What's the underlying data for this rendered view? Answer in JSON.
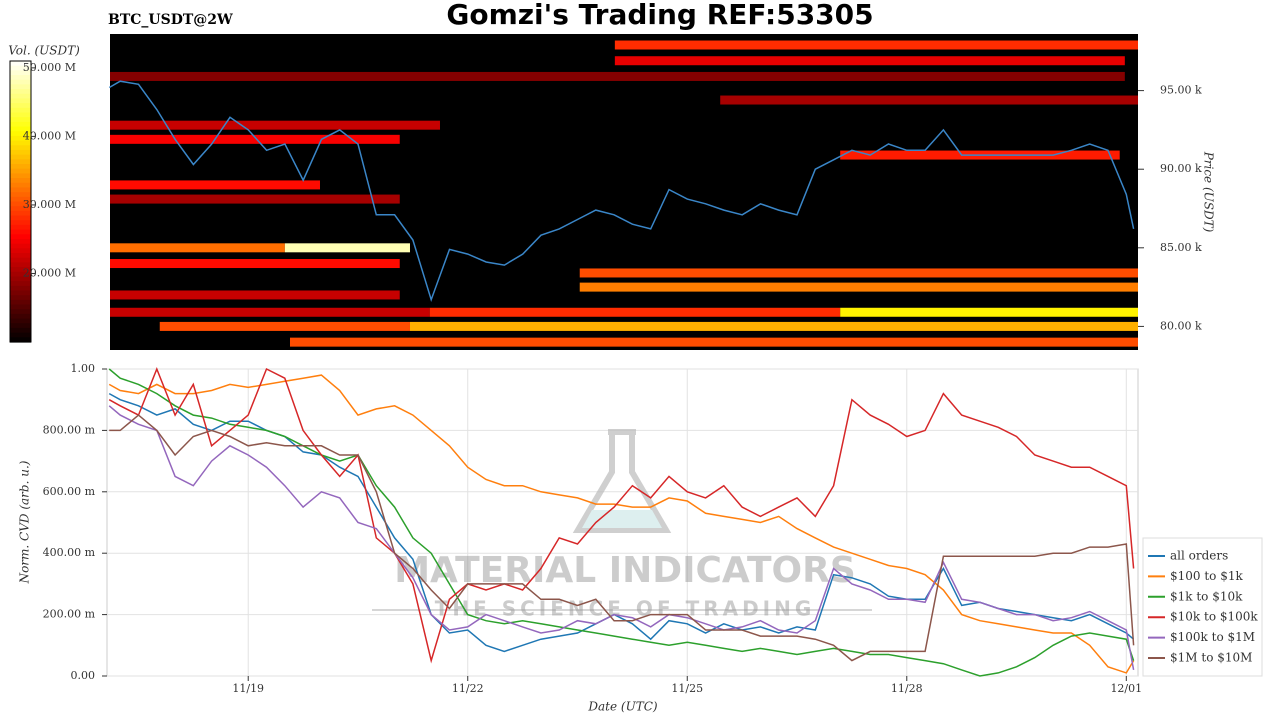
{
  "chart_data": [
    {
      "type": "heatmap",
      "title": "Gomzi's Trading REF:53305",
      "subtitle": "BTC_USDT@2W",
      "ylabel": "Price (USDT)",
      "xlim": [
        17.11,
        31.16
      ],
      "ylim": [
        78.5,
        98.6
      ],
      "yticks": [
        {
          "value": 80,
          "label": "80.00 k"
        },
        {
          "value": 85,
          "label": "85.00 k"
        },
        {
          "value": 90,
          "label": "90.00 k"
        },
        {
          "value": 95,
          "label": "95.00 k"
        }
      ],
      "colorbar": {
        "label": "Vol. (USDT)",
        "colormap": "hot",
        "clim": [
          10,
          51
        ],
        "ticks": [
          {
            "value": 20,
            "label": "20.000 M"
          },
          {
            "value": 30,
            "label": "30.000 M"
          },
          {
            "value": 40,
            "label": "40.000 M"
          },
          {
            "value": 50,
            "label": "50.000 M"
          }
        ]
      },
      "cells": [
        {
          "x0": 24.01,
          "x1": 31.16,
          "price": 97.9,
          "volume": 28
        },
        {
          "x0": 24.01,
          "x1": 30.98,
          "price": 96.9,
          "volume": 24
        },
        {
          "x0": 17.11,
          "x1": 30.98,
          "price": 95.9,
          "volume": 18
        },
        {
          "x0": 25.45,
          "x1": 31.16,
          "price": 94.4,
          "volume": 20
        },
        {
          "x0": 17.11,
          "x1": 21.62,
          "price": 92.8,
          "volume": 22
        },
        {
          "x0": 17.11,
          "x1": 21.07,
          "price": 91.9,
          "volume": 25
        },
        {
          "x0": 27.09,
          "x1": 30.91,
          "price": 90.9,
          "volume": 27
        },
        {
          "x0": 17.11,
          "x1": 19.98,
          "price": 89.0,
          "volume": 26
        },
        {
          "x0": 17.11,
          "x1": 21.07,
          "price": 88.1,
          "volume": 20
        },
        {
          "x0": 17.11,
          "x1": 19.5,
          "price": 85.0,
          "volume": 32
        },
        {
          "x0": 19.5,
          "x1": 21.21,
          "price": 85.0,
          "volume": 48
        },
        {
          "x0": 17.11,
          "x1": 21.07,
          "price": 84.0,
          "volume": 26
        },
        {
          "x0": 23.53,
          "x1": 31.16,
          "price": 83.4,
          "volume": 30
        },
        {
          "x0": 23.53,
          "x1": 31.16,
          "price": 82.5,
          "volume": 33
        },
        {
          "x0": 17.11,
          "x1": 21.07,
          "price": 82.0,
          "volume": 22
        },
        {
          "x0": 17.11,
          "x1": 21.48,
          "price": 80.9,
          "volume": 22
        },
        {
          "x0": 21.48,
          "x1": 27.09,
          "price": 80.9,
          "volume": 28
        },
        {
          "x0": 27.09,
          "x1": 31.16,
          "price": 80.9,
          "volume": 40
        },
        {
          "x0": 17.79,
          "x1": 21.21,
          "price": 80.0,
          "volume": 30
        },
        {
          "x0": 21.21,
          "x1": 31.16,
          "price": 80.0,
          "volume": 36
        },
        {
          "x0": 19.57,
          "x1": 31.16,
          "price": 79.0,
          "volume": 30
        }
      ],
      "x": [
        17.1,
        17.25,
        17.5,
        17.75,
        18,
        18.25,
        18.5,
        18.75,
        19,
        19.25,
        19.5,
        19.75,
        20,
        20.25,
        20.5,
        20.75,
        21,
        21.25,
        21.5,
        21.75,
        22,
        22.25,
        22.5,
        22.75,
        23,
        23.25,
        23.5,
        23.75,
        24,
        24.25,
        24.5,
        24.75,
        25,
        25.25,
        25.5,
        25.75,
        26,
        26.25,
        26.5,
        26.75,
        27,
        27.25,
        27.5,
        27.75,
        28,
        28.25,
        28.5,
        28.75,
        29,
        29.25,
        29.5,
        29.75,
        30,
        30.25,
        30.5,
        30.75,
        31,
        31.1
      ],
      "line": {
        "color": "#3a86c8",
        "values": [
          95.2,
          95.6,
          95.4,
          93.8,
          91.9,
          90.3,
          91.6,
          93.3,
          92.5,
          91.2,
          91.6,
          89.3,
          91.9,
          92.5,
          91.6,
          87.1,
          87.1,
          85.5,
          81.7,
          84.9,
          84.6,
          84.1,
          83.9,
          84.6,
          85.8,
          86.2,
          86.8,
          87.4,
          87.1,
          86.5,
          86.2,
          88.7,
          88.1,
          87.8,
          87.4,
          87.1,
          87.8,
          87.4,
          87.1,
          90.0,
          90.6,
          91.2,
          90.9,
          91.6,
          91.2,
          91.2,
          92.5,
          90.9,
          90.9,
          90.9,
          90.9,
          90.9,
          90.9,
          91.2,
          91.6,
          91.2,
          88.4,
          86.2
        ]
      }
    },
    {
      "type": "line",
      "xlabel": "Date (UTC)",
      "ylabel": "Norm. CVD (arb. u.)",
      "grid": true,
      "legend": "outside right",
      "watermark": [
        "MATERIAL INDICATORS",
        "THE SCIENCE OF TRADING"
      ],
      "xlim": [
        17.07,
        31.16
      ],
      "ylim": [
        0,
        1
      ],
      "xticks": [
        {
          "value": 19,
          "label": "11/19"
        },
        {
          "value": 22,
          "label": "11/22"
        },
        {
          "value": 25,
          "label": "11/25"
        },
        {
          "value": 28,
          "label": "11/28"
        },
        {
          "value": 31,
          "label": "12/01"
        }
      ],
      "yticks": [
        {
          "value": 0,
          "label": "0.00"
        },
        {
          "value": 0.2,
          "label": "200.00 m"
        },
        {
          "value": 0.4,
          "label": "400.00 m"
        },
        {
          "value": 0.6,
          "label": "600.00 m"
        },
        {
          "value": 0.8,
          "label": "800.00 m"
        },
        {
          "value": 1,
          "label": "1.00"
        }
      ],
      "x": [
        17.1,
        17.25,
        17.5,
        17.75,
        18,
        18.25,
        18.5,
        18.75,
        19,
        19.25,
        19.5,
        19.75,
        20,
        20.25,
        20.5,
        20.75,
        21,
        21.25,
        21.5,
        21.75,
        22,
        22.25,
        22.5,
        22.75,
        23,
        23.25,
        23.5,
        23.75,
        24,
        24.25,
        24.5,
        24.75,
        25,
        25.25,
        25.5,
        25.75,
        26,
        26.25,
        26.5,
        26.75,
        27,
        27.25,
        27.5,
        27.75,
        28,
        28.25,
        28.5,
        28.75,
        29,
        29.25,
        29.5,
        29.75,
        30,
        30.25,
        30.5,
        30.75,
        31,
        31.1
      ],
      "series": [
        {
          "name": "all orders",
          "color": "#1f77b4",
          "values": [
            0.92,
            0.9,
            0.88,
            0.85,
            0.87,
            0.82,
            0.8,
            0.83,
            0.83,
            0.8,
            0.78,
            0.73,
            0.72,
            0.68,
            0.65,
            0.55,
            0.45,
            0.38,
            0.2,
            0.14,
            0.15,
            0.1,
            0.08,
            0.1,
            0.12,
            0.13,
            0.14,
            0.17,
            0.2,
            0.17,
            0.12,
            0.18,
            0.17,
            0.14,
            0.17,
            0.15,
            0.16,
            0.14,
            0.16,
            0.15,
            0.33,
            0.32,
            0.3,
            0.26,
            0.25,
            0.25,
            0.35,
            0.23,
            0.24,
            0.22,
            0.21,
            0.2,
            0.19,
            0.18,
            0.2,
            0.17,
            0.14,
            0.12
          ]
        },
        {
          "name": "$100 to $1k",
          "color": "#ff7f0e",
          "values": [
            0.95,
            0.93,
            0.92,
            0.95,
            0.92,
            0.92,
            0.93,
            0.95,
            0.94,
            0.95,
            0.96,
            0.97,
            0.98,
            0.93,
            0.85,
            0.87,
            0.88,
            0.85,
            0.8,
            0.75,
            0.68,
            0.64,
            0.62,
            0.62,
            0.6,
            0.59,
            0.58,
            0.56,
            0.56,
            0.55,
            0.55,
            0.58,
            0.57,
            0.53,
            0.52,
            0.51,
            0.5,
            0.52,
            0.48,
            0.45,
            0.42,
            0.4,
            0.38,
            0.36,
            0.35,
            0.33,
            0.28,
            0.2,
            0.18,
            0.17,
            0.16,
            0.15,
            0.14,
            0.14,
            0.1,
            0.03,
            0.01,
            0.05
          ]
        },
        {
          "name": "$1k to $10k",
          "color": "#2ca02c",
          "values": [
            1.0,
            0.97,
            0.95,
            0.92,
            0.88,
            0.85,
            0.84,
            0.82,
            0.81,
            0.8,
            0.78,
            0.75,
            0.72,
            0.7,
            0.72,
            0.62,
            0.55,
            0.45,
            0.4,
            0.3,
            0.2,
            0.18,
            0.17,
            0.18,
            0.17,
            0.16,
            0.15,
            0.14,
            0.13,
            0.12,
            0.11,
            0.1,
            0.11,
            0.1,
            0.09,
            0.08,
            0.09,
            0.08,
            0.07,
            0.08,
            0.09,
            0.08,
            0.07,
            0.07,
            0.06,
            0.05,
            0.04,
            0.02,
            0.0,
            0.01,
            0.03,
            0.06,
            0.1,
            0.13,
            0.14,
            0.13,
            0.12,
            0.05
          ]
        },
        {
          "name": "$10k to $100k",
          "color": "#d62728",
          "values": [
            0.9,
            0.88,
            0.85,
            1.0,
            0.85,
            0.95,
            0.75,
            0.8,
            0.85,
            1.0,
            0.97,
            0.8,
            0.72,
            0.65,
            0.72,
            0.45,
            0.4,
            0.3,
            0.05,
            0.25,
            0.3,
            0.28,
            0.3,
            0.28,
            0.35,
            0.45,
            0.43,
            0.5,
            0.55,
            0.62,
            0.58,
            0.65,
            0.6,
            0.58,
            0.62,
            0.55,
            0.52,
            0.55,
            0.58,
            0.52,
            0.62,
            0.9,
            0.85,
            0.82,
            0.78,
            0.8,
            0.92,
            0.85,
            0.83,
            0.81,
            0.78,
            0.72,
            0.7,
            0.68,
            0.68,
            0.65,
            0.62,
            0.35
          ]
        },
        {
          "name": "$100k to $1M",
          "color": "#9467bd",
          "values": [
            0.88,
            0.85,
            0.82,
            0.8,
            0.65,
            0.62,
            0.7,
            0.75,
            0.72,
            0.68,
            0.62,
            0.55,
            0.6,
            0.58,
            0.5,
            0.48,
            0.4,
            0.32,
            0.2,
            0.15,
            0.16,
            0.2,
            0.18,
            0.16,
            0.14,
            0.15,
            0.18,
            0.17,
            0.2,
            0.19,
            0.16,
            0.2,
            0.19,
            0.17,
            0.15,
            0.16,
            0.18,
            0.15,
            0.14,
            0.18,
            0.35,
            0.3,
            0.28,
            0.25,
            0.25,
            0.24,
            0.37,
            0.25,
            0.24,
            0.22,
            0.2,
            0.2,
            0.18,
            0.19,
            0.21,
            0.18,
            0.15,
            0.02
          ]
        },
        {
          "name": "$1M to $10M",
          "color": "#8c564b",
          "values": [
            0.8,
            0.8,
            0.85,
            0.8,
            0.72,
            0.78,
            0.8,
            0.78,
            0.75,
            0.76,
            0.75,
            0.75,
            0.75,
            0.72,
            0.72,
            0.6,
            0.4,
            0.35,
            0.28,
            0.22,
            0.3,
            0.3,
            0.3,
            0.3,
            0.25,
            0.25,
            0.23,
            0.25,
            0.18,
            0.18,
            0.2,
            0.2,
            0.2,
            0.15,
            0.15,
            0.15,
            0.13,
            0.13,
            0.13,
            0.12,
            0.1,
            0.05,
            0.08,
            0.08,
            0.08,
            0.08,
            0.39,
            0.39,
            0.39,
            0.39,
            0.39,
            0.39,
            0.4,
            0.4,
            0.42,
            0.42,
            0.43,
            0.1
          ]
        }
      ]
    }
  ]
}
